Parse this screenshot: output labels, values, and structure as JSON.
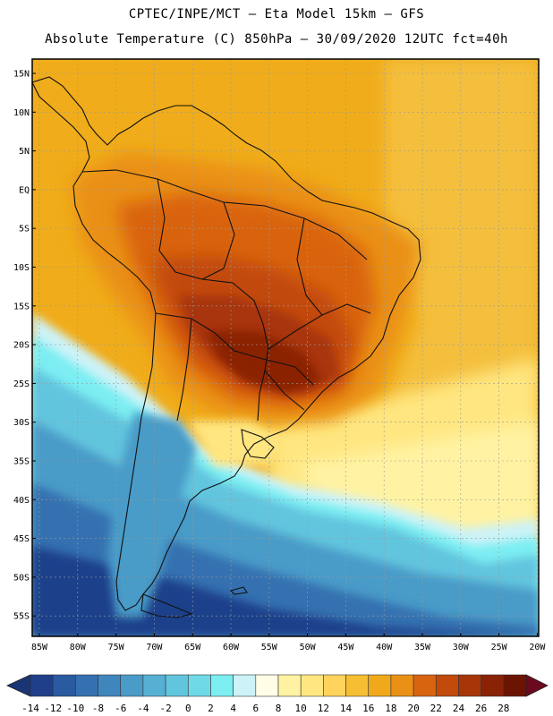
{
  "header": {
    "title_line1": "CPTEC/INPE/MCT –  Eta Model 15km – GFS",
    "title_line2": "Absolute Temperature (C) 850hPa – 30/09/2020 12UTC fct=40h"
  },
  "map": {
    "region": "South America",
    "variable": "Absolute Temperature 850hPa",
    "lat_labels": [
      "15N",
      "10N",
      "5N",
      "EQ",
      "5S",
      "10S",
      "15S",
      "20S",
      "25S",
      "30S",
      "35S",
      "40S",
      "45S",
      "50S",
      "55S"
    ],
    "lon_labels": [
      "85W",
      "80W",
      "75W",
      "70W",
      "65W",
      "60W",
      "55W",
      "50W",
      "45W",
      "40W",
      "35W",
      "30W",
      "25W",
      "20W"
    ]
  },
  "colorbar": {
    "labels": [
      "-14",
      "-12",
      "-10",
      "-8",
      "-6",
      "-4",
      "-2",
      "0",
      "2",
      "4",
      "6",
      "8",
      "10",
      "12",
      "14",
      "16",
      "18",
      "20",
      "22",
      "24",
      "26",
      "28"
    ],
    "colors": [
      "#1f3f8a",
      "#2a5aa0",
      "#3571b0",
      "#3f86bd",
      "#4a9bc8",
      "#55b0d3",
      "#62c5de",
      "#6fd9e8",
      "#7ceef2",
      "#cdf3f8",
      "#fffde6",
      "#fff3a3",
      "#ffe680",
      "#ffd35c",
      "#f6be33",
      "#f0a91a",
      "#ea9015",
      "#d9640f",
      "#c24a0a",
      "#a83508",
      "#8a2206",
      "#6b1404"
    ],
    "low_arrow_color": "#1a3575",
    "high_arrow_color": "#6b0a1e"
  }
}
